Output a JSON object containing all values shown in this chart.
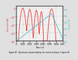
{
  "title": "",
  "xlabel": "Time (s)",
  "ylabel_left": "Spectrum (dB)",
  "ylabel_right": "Current (A)",
  "bg_color": "#e0e0e0",
  "plot_bg_color": "#f0f0f0",
  "red_color": "#ee3333",
  "cyan_color": "#44bbcc",
  "xlim": [
    0.0,
    0.007
  ],
  "ylim_left": [
    -80,
    5
  ],
  "ylim_right": [
    0,
    0.55
  ],
  "left_ticks": [
    -80,
    -60,
    -40,
    -20,
    0
  ],
  "right_ticks": [
    0,
    0.1,
    0.2,
    0.3,
    0.4,
    0.5
  ],
  "x_ticks": [
    0.0,
    0.001,
    0.002,
    0.003,
    0.004,
    0.005,
    0.006,
    0.007
  ],
  "caption": "Figure 43   Spectrum analyzer display, for current analysis in figure 42"
}
